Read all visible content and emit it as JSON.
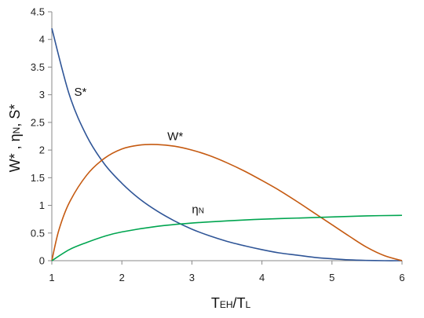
{
  "chart_data": {
    "type": "line",
    "title": "",
    "xlabel_main": "T",
    "xlabel_sub1": "EH",
    "xlabel_sep": "/T",
    "xlabel_sub2": "L",
    "ylabel": "W* , η",
    "ylabel_sub": "N",
    "ylabel_tail": ", S*",
    "xlim": [
      1,
      6
    ],
    "ylim": [
      0,
      4.5
    ],
    "xticks": [
      "1",
      "2",
      "3",
      "4",
      "5",
      "6"
    ],
    "yticks": [
      "0",
      "0.5",
      "1",
      "1.5",
      "2",
      "2.5",
      "3",
      "3.5",
      "4",
      "4.5"
    ],
    "grid": false,
    "series": [
      {
        "name": "S*",
        "color": "#2f5597",
        "x": [
          1.0,
          1.25,
          1.5,
          1.75,
          2.0,
          2.25,
          2.5,
          2.75,
          3.0,
          3.25,
          3.5,
          3.75,
          4.0,
          4.25,
          4.5,
          4.75,
          5.0,
          5.25,
          5.5,
          5.75,
          6.0
        ],
        "y": [
          4.2,
          3.0,
          2.25,
          1.75,
          1.4,
          1.12,
          0.9,
          0.72,
          0.57,
          0.45,
          0.35,
          0.27,
          0.2,
          0.14,
          0.1,
          0.06,
          0.035,
          0.015,
          0.005,
          0.0,
          0.0
        ]
      },
      {
        "name": "W*",
        "color": "#c55a11",
        "x": [
          1.0,
          1.1,
          1.25,
          1.5,
          1.75,
          2.0,
          2.25,
          2.5,
          2.75,
          3.0,
          3.25,
          3.5,
          3.75,
          4.0,
          4.25,
          4.5,
          4.75,
          5.0,
          5.25,
          5.5,
          5.75,
          6.0
        ],
        "y": [
          0.0,
          0.55,
          1.05,
          1.55,
          1.85,
          2.02,
          2.09,
          2.1,
          2.07,
          2.0,
          1.9,
          1.77,
          1.62,
          1.45,
          1.27,
          1.07,
          0.86,
          0.65,
          0.44,
          0.24,
          0.09,
          0.0
        ]
      },
      {
        "name": "ηN",
        "color": "#00a550",
        "x": [
          1.0,
          1.25,
          1.5,
          1.75,
          2.0,
          2.5,
          3.0,
          3.5,
          4.0,
          4.5,
          5.0,
          5.5,
          6.0
        ],
        "y": [
          0.0,
          0.2,
          0.33,
          0.44,
          0.52,
          0.62,
          0.68,
          0.72,
          0.75,
          0.77,
          0.79,
          0.81,
          0.82
        ]
      }
    ],
    "annotations": [
      {
        "text": "S*",
        "sub": "",
        "x": 1.32,
        "y": 2.98
      },
      {
        "text": "W*",
        "sub": "",
        "x": 2.65,
        "y": 2.18
      },
      {
        "text": "η",
        "sub": "N",
        "x": 3.0,
        "y": 0.86
      }
    ]
  }
}
